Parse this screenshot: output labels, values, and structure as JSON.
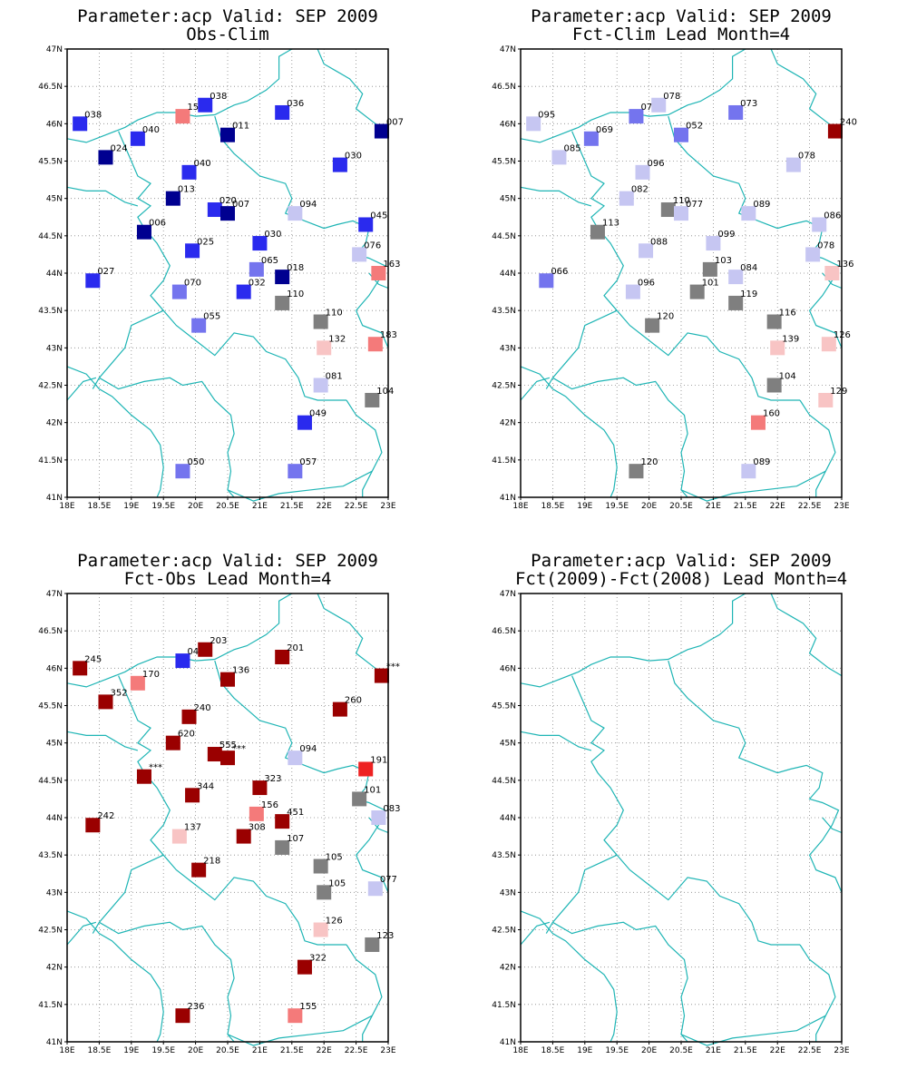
{
  "colors": {
    "darkred": "#9a0000",
    "red": "#ee2222",
    "salmon": "#f47a7a",
    "pink": "#f8c4c4",
    "gray": "#7f7f7f",
    "lightblue": "#c6c6f2",
    "midblue": "#7474ee",
    "blue": "#2a2aee",
    "navy": "#000090",
    "border": "#1fb5b5"
  },
  "axes": {
    "lon_ticks": [
      "18E",
      "18.5E",
      "19E",
      "19.5E",
      "20E",
      "20.5E",
      "21E",
      "21.5E",
      "22E",
      "22.5E",
      "23E"
    ],
    "lat_ticks": [
      "41N",
      "41.5N",
      "42N",
      "42.5N",
      "43N",
      "43.5N",
      "44N",
      "44.5N",
      "45N",
      "45.5N",
      "46N",
      "46.5N",
      "47N"
    ],
    "lon_range": [
      18,
      23
    ],
    "lat_range": [
      41,
      47
    ],
    "grid": true
  },
  "panels": [
    {
      "title1": "Parameter:acp Valid: SEP 2009",
      "title2": "Obs-Clim",
      "stations": [
        {
          "lon": 18.2,
          "lat": 46.0,
          "label": "038",
          "color": "blue"
        },
        {
          "lon": 19.8,
          "lat": 46.1,
          "label": "150",
          "color": "salmon"
        },
        {
          "lon": 20.15,
          "lat": 46.25,
          "label": "038",
          "color": "blue"
        },
        {
          "lon": 21.35,
          "lat": 46.15,
          "label": "036",
          "color": "blue"
        },
        {
          "lon": 22.9,
          "lat": 45.9,
          "label": "007",
          "color": "navy"
        },
        {
          "lon": 19.1,
          "lat": 45.8,
          "label": "040",
          "color": "blue"
        },
        {
          "lon": 20.5,
          "lat": 45.85,
          "label": "011",
          "color": "navy"
        },
        {
          "lon": 18.6,
          "lat": 45.55,
          "label": "024",
          "color": "navy"
        },
        {
          "lon": 22.25,
          "lat": 45.45,
          "label": "030",
          "color": "blue"
        },
        {
          "lon": 19.9,
          "lat": 45.35,
          "label": "040",
          "color": "blue"
        },
        {
          "lon": 19.65,
          "lat": 45.0,
          "label": "013",
          "color": "navy"
        },
        {
          "lon": 20.3,
          "lat": 44.85,
          "label": "020",
          "color": "blue"
        },
        {
          "lon": 20.5,
          "lat": 44.8,
          "label": "007",
          "color": "navy"
        },
        {
          "lon": 21.55,
          "lat": 44.8,
          "label": "094",
          "color": "lightblue"
        },
        {
          "lon": 22.65,
          "lat": 44.65,
          "label": "045",
          "color": "blue"
        },
        {
          "lon": 19.2,
          "lat": 44.55,
          "label": "006",
          "color": "navy"
        },
        {
          "lon": 21.0,
          "lat": 44.4,
          "label": "030",
          "color": "blue"
        },
        {
          "lon": 19.95,
          "lat": 44.3,
          "label": "025",
          "color": "blue"
        },
        {
          "lon": 22.55,
          "lat": 44.25,
          "label": "076",
          "color": "lightblue"
        },
        {
          "lon": 20.95,
          "lat": 44.05,
          "label": "065",
          "color": "midblue"
        },
        {
          "lon": 22.85,
          "lat": 44.0,
          "label": "163",
          "color": "salmon"
        },
        {
          "lon": 21.35,
          "lat": 43.95,
          "label": "018",
          "color": "navy"
        },
        {
          "lon": 18.4,
          "lat": 43.9,
          "label": "027",
          "color": "blue"
        },
        {
          "lon": 19.75,
          "lat": 43.75,
          "label": "070",
          "color": "midblue"
        },
        {
          "lon": 20.75,
          "lat": 43.75,
          "label": "032",
          "color": "blue"
        },
        {
          "lon": 21.35,
          "lat": 43.6,
          "label": "110",
          "color": "gray"
        },
        {
          "lon": 21.95,
          "lat": 43.35,
          "label": "110",
          "color": "gray"
        },
        {
          "lon": 20.05,
          "lat": 43.3,
          "label": "055",
          "color": "midblue"
        },
        {
          "lon": 22.0,
          "lat": 43.0,
          "label": "132",
          "color": "pink"
        },
        {
          "lon": 22.8,
          "lat": 43.05,
          "label": "183",
          "color": "salmon"
        },
        {
          "lon": 21.95,
          "lat": 42.5,
          "label": "081",
          "color": "lightblue"
        },
        {
          "lon": 22.75,
          "lat": 42.3,
          "label": "104",
          "color": "gray"
        },
        {
          "lon": 21.7,
          "lat": 42.0,
          "label": "049",
          "color": "blue"
        },
        {
          "lon": 19.8,
          "lat": 41.35,
          "label": "050",
          "color": "midblue"
        },
        {
          "lon": 21.55,
          "lat": 41.35,
          "label": "057",
          "color": "midblue"
        }
      ]
    },
    {
      "title1": "Parameter:acp Valid: SEP 2009",
      "title2": "Fct-Clim Lead Month=4",
      "stations": [
        {
          "lon": 18.2,
          "lat": 46.0,
          "label": "095",
          "color": "lightblue"
        },
        {
          "lon": 19.8,
          "lat": 46.1,
          "label": "073",
          "color": "midblue"
        },
        {
          "lon": 20.15,
          "lat": 46.25,
          "label": "078",
          "color": "lightblue"
        },
        {
          "lon": 21.35,
          "lat": 46.15,
          "label": "073",
          "color": "midblue"
        },
        {
          "lon": 22.9,
          "lat": 45.9,
          "label": "240",
          "color": "darkred"
        },
        {
          "lon": 19.1,
          "lat": 45.8,
          "label": "069",
          "color": "midblue"
        },
        {
          "lon": 20.5,
          "lat": 45.85,
          "label": "052",
          "color": "midblue"
        },
        {
          "lon": 18.6,
          "lat": 45.55,
          "label": "085",
          "color": "lightblue"
        },
        {
          "lon": 22.25,
          "lat": 45.45,
          "label": "078",
          "color": "lightblue"
        },
        {
          "lon": 19.9,
          "lat": 45.35,
          "label": "096",
          "color": "lightblue"
        },
        {
          "lon": 19.65,
          "lat": 45.0,
          "label": "082",
          "color": "lightblue"
        },
        {
          "lon": 20.3,
          "lat": 44.85,
          "label": "110",
          "color": "gray"
        },
        {
          "lon": 20.5,
          "lat": 44.8,
          "label": "077",
          "color": "lightblue"
        },
        {
          "lon": 21.55,
          "lat": 44.8,
          "label": "089",
          "color": "lightblue"
        },
        {
          "lon": 22.65,
          "lat": 44.65,
          "label": "086",
          "color": "lightblue"
        },
        {
          "lon": 19.2,
          "lat": 44.55,
          "label": "113",
          "color": "gray"
        },
        {
          "lon": 21.0,
          "lat": 44.4,
          "label": "099",
          "color": "lightblue"
        },
        {
          "lon": 19.95,
          "lat": 44.3,
          "label": "088",
          "color": "lightblue"
        },
        {
          "lon": 22.55,
          "lat": 44.25,
          "label": "078",
          "color": "lightblue"
        },
        {
          "lon": 20.95,
          "lat": 44.05,
          "label": "103",
          "color": "gray"
        },
        {
          "lon": 22.85,
          "lat": 44.0,
          "label": "136",
          "color": "pink"
        },
        {
          "lon": 21.35,
          "lat": 43.95,
          "label": "084",
          "color": "lightblue"
        },
        {
          "lon": 18.4,
          "lat": 43.9,
          "label": "066",
          "color": "midblue"
        },
        {
          "lon": 19.75,
          "lat": 43.75,
          "label": "096",
          "color": "lightblue"
        },
        {
          "lon": 20.75,
          "lat": 43.75,
          "label": "101",
          "color": "gray"
        },
        {
          "lon": 21.35,
          "lat": 43.6,
          "label": "119",
          "color": "gray"
        },
        {
          "lon": 21.95,
          "lat": 43.35,
          "label": "116",
          "color": "gray"
        },
        {
          "lon": 20.05,
          "lat": 43.3,
          "label": "120",
          "color": "gray"
        },
        {
          "lon": 22.0,
          "lat": 43.0,
          "label": "139",
          "color": "pink"
        },
        {
          "lon": 22.8,
          "lat": 43.05,
          "label": "126",
          "color": "pink"
        },
        {
          "lon": 21.95,
          "lat": 42.5,
          "label": "104",
          "color": "gray"
        },
        {
          "lon": 22.75,
          "lat": 42.3,
          "label": "129",
          "color": "pink"
        },
        {
          "lon": 21.7,
          "lat": 42.0,
          "label": "160",
          "color": "salmon"
        },
        {
          "lon": 19.8,
          "lat": 41.35,
          "label": "120",
          "color": "gray"
        },
        {
          "lon": 21.55,
          "lat": 41.35,
          "label": "089",
          "color": "lightblue"
        }
      ]
    },
    {
      "title1": "Parameter:acp Valid: SEP 2009",
      "title2": "Fct-Obs Lead Month=4",
      "stations": [
        {
          "lon": 18.2,
          "lat": 46.0,
          "label": "245",
          "color": "darkred"
        },
        {
          "lon": 19.8,
          "lat": 46.1,
          "label": "048",
          "color": "blue"
        },
        {
          "lon": 20.15,
          "lat": 46.25,
          "label": "203",
          "color": "darkred"
        },
        {
          "lon": 21.35,
          "lat": 46.15,
          "label": "201",
          "color": "darkred"
        },
        {
          "lon": 22.9,
          "lat": 45.9,
          "label": "***",
          "color": "darkred"
        },
        {
          "lon": 19.1,
          "lat": 45.8,
          "label": "170",
          "color": "salmon"
        },
        {
          "lon": 20.5,
          "lat": 45.85,
          "label": "136",
          "color": "darkred"
        },
        {
          "lon": 18.6,
          "lat": 45.55,
          "label": "352",
          "color": "darkred"
        },
        {
          "lon": 22.25,
          "lat": 45.45,
          "label": "260",
          "color": "darkred"
        },
        {
          "lon": 19.9,
          "lat": 45.35,
          "label": "240",
          "color": "darkred"
        },
        {
          "lon": 19.65,
          "lat": 45.0,
          "label": "620",
          "color": "darkred"
        },
        {
          "lon": 20.3,
          "lat": 44.85,
          "label": "555",
          "color": "darkred"
        },
        {
          "lon": 20.5,
          "lat": 44.8,
          "label": "***",
          "color": "darkred"
        },
        {
          "lon": 21.55,
          "lat": 44.8,
          "label": "094",
          "color": "lightblue"
        },
        {
          "lon": 22.65,
          "lat": 44.65,
          "label": "191",
          "color": "red"
        },
        {
          "lon": 19.2,
          "lat": 44.55,
          "label": "***",
          "color": "darkred"
        },
        {
          "lon": 21.0,
          "lat": 44.4,
          "label": "323",
          "color": "darkred"
        },
        {
          "lon": 19.95,
          "lat": 44.3,
          "label": "344",
          "color": "darkred"
        },
        {
          "lon": 22.55,
          "lat": 44.25,
          "label": "101",
          "color": "gray"
        },
        {
          "lon": 20.95,
          "lat": 44.05,
          "label": "156",
          "color": "salmon"
        },
        {
          "lon": 22.85,
          "lat": 44.0,
          "label": "083",
          "color": "lightblue"
        },
        {
          "lon": 21.35,
          "lat": 43.95,
          "label": "451",
          "color": "darkred"
        },
        {
          "lon": 18.4,
          "lat": 43.9,
          "label": "242",
          "color": "darkred"
        },
        {
          "lon": 19.75,
          "lat": 43.75,
          "label": "137",
          "color": "pink"
        },
        {
          "lon": 20.75,
          "lat": 43.75,
          "label": "308",
          "color": "darkred"
        },
        {
          "lon": 21.35,
          "lat": 43.6,
          "label": "107",
          "color": "gray"
        },
        {
          "lon": 21.95,
          "lat": 43.35,
          "label": "105",
          "color": "gray"
        },
        {
          "lon": 20.05,
          "lat": 43.3,
          "label": "218",
          "color": "darkred"
        },
        {
          "lon": 22.0,
          "lat": 43.0,
          "label": "105",
          "color": "gray"
        },
        {
          "lon": 22.8,
          "lat": 43.05,
          "label": "077",
          "color": "lightblue"
        },
        {
          "lon": 21.95,
          "lat": 42.5,
          "label": "126",
          "color": "pink"
        },
        {
          "lon": 22.75,
          "lat": 42.3,
          "label": "123",
          "color": "gray"
        },
        {
          "lon": 21.7,
          "lat": 42.0,
          "label": "322",
          "color": "darkred"
        },
        {
          "lon": 19.8,
          "lat": 41.35,
          "label": "236",
          "color": "darkred"
        },
        {
          "lon": 21.55,
          "lat": 41.35,
          "label": "155",
          "color": "salmon"
        }
      ]
    },
    {
      "title1": "Parameter:acp Valid: SEP 2009",
      "title2": "Fct(2009)-Fct(2008) Lead Month=4",
      "stations": []
    }
  ]
}
